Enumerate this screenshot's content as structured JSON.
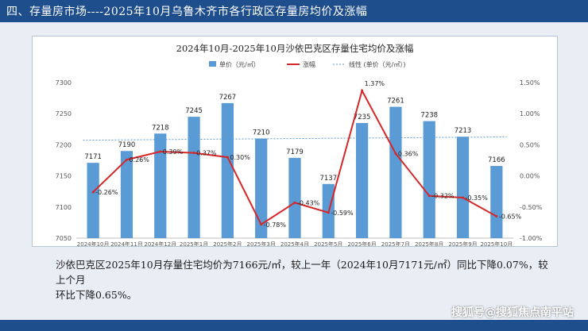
{
  "header": {
    "title": "四、存量房市场----2025年10月乌鲁木齐市各行政区存量房均价及涨幅"
  },
  "chart_data": {
    "type": "bar",
    "title": "2024年10月-2025年10月沙依巴克区存量住宅均价及涨幅",
    "categories": [
      "2024年10月",
      "2024年11月",
      "2024年12月",
      "2025年1月",
      "2025年2月",
      "2025年3月",
      "2025年4月",
      "2025年5月",
      "2025年6月",
      "2025年7月",
      "2025年8月",
      "2025年9月",
      "2025年10月"
    ],
    "series": [
      {
        "name": "单价（元/㎡）",
        "type": "bar",
        "axis": "left",
        "color": "#5b9bd5",
        "values": [
          7171,
          7190,
          7218,
          7245,
          7267,
          7210,
          7179,
          7137,
          7235,
          7261,
          7238,
          7213,
          7166
        ],
        "labels": [
          "7171",
          "7190",
          "7218",
          "7245",
          "7267",
          "7210",
          "7179",
          "7137",
          "7235",
          "7261",
          "7238",
          "7213",
          "7166"
        ]
      },
      {
        "name": "涨幅",
        "type": "line",
        "axis": "right",
        "color": "#d62728",
        "values": [
          -0.26,
          0.26,
          0.39,
          0.37,
          0.3,
          -0.78,
          -0.43,
          -0.59,
          1.37,
          0.36,
          -0.32,
          -0.35,
          -0.65
        ],
        "labels": [
          "-0.26%",
          "0.26%",
          "0.39%",
          "0.37%",
          "0.30%",
          "-0.78%",
          "-0.43%",
          "-0.59%",
          "1.37%",
          "0.36%",
          "-0.32%",
          "-0.35%",
          "-0.65%"
        ]
      },
      {
        "name": "线性 (单价（元/㎡）)",
        "type": "trendline",
        "axis": "left",
        "color": "#5b9bd5"
      }
    ],
    "ylim": [
      7050,
      7300
    ],
    "yticks": [
      "7050",
      "7100",
      "7150",
      "7200",
      "7250",
      "7300"
    ],
    "ylim_right": [
      -1.0,
      1.5
    ],
    "yticks_right": [
      "-1.00%",
      "-0.50%",
      "0.00%",
      "0.50%",
      "1.00%",
      "1.50%"
    ],
    "grid": false,
    "legend": "top-center"
  },
  "caption": {
    "line1": "沙依巴克区2025年10月存量住宅均价为7166元/㎡，较上一年（2024年10月7171元/㎡）同比下降0.07%，较上个月",
    "line2": "环比下降0.65%。"
  },
  "watermark": "搜狐号@搜狐焦点南平站"
}
